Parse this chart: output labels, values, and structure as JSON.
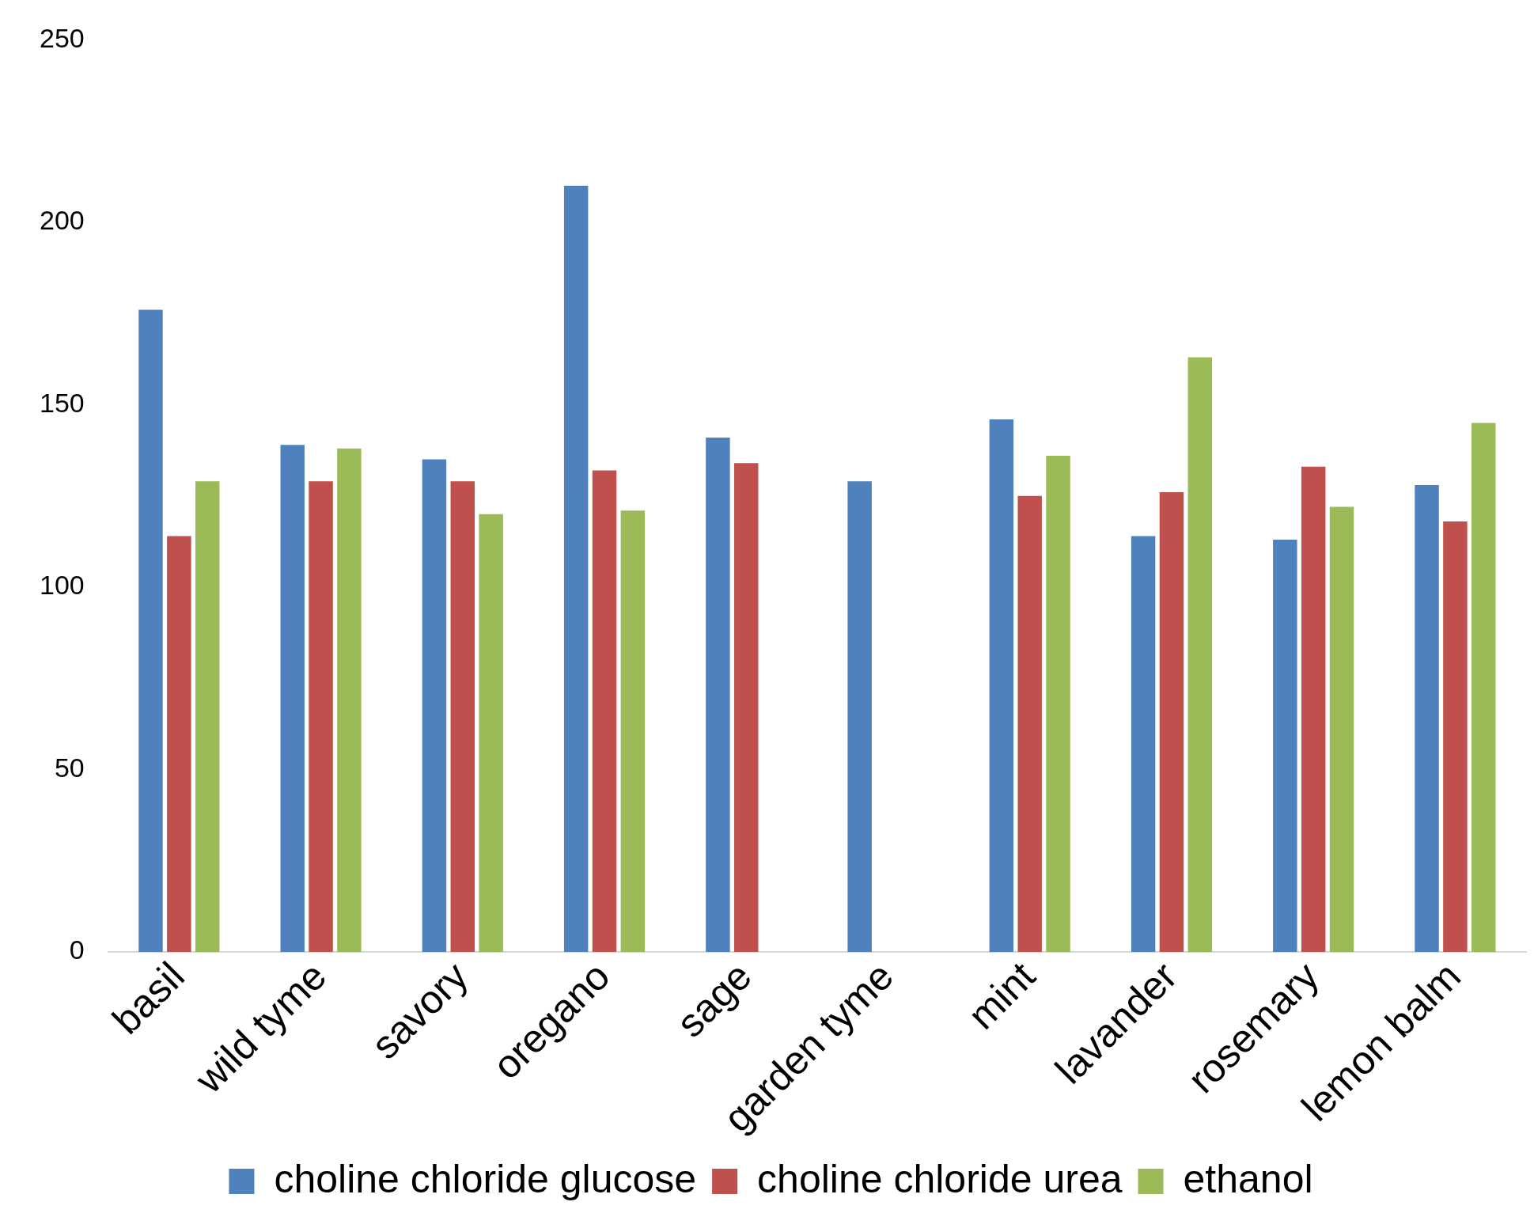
{
  "chart_data": {
    "type": "bar",
    "categories": [
      "basil",
      "wild tyme",
      "savory",
      "oregano",
      "sage",
      "garden tyme",
      "mint",
      "lavander",
      "rosemary",
      "lemon balm"
    ],
    "series": [
      {
        "name": "choline chloride glucose",
        "color": "#4f81bd",
        "values": [
          176,
          139,
          135,
          210,
          141,
          129,
          146,
          114,
          113,
          128
        ]
      },
      {
        "name": "choline chloride urea",
        "color": "#c0504d",
        "values": [
          114,
          129,
          129,
          132,
          134,
          null,
          125,
          126,
          133,
          118
        ]
      },
      {
        "name": "ethanol",
        "color": "#9bbb59",
        "values": [
          129,
          138,
          120,
          121,
          null,
          null,
          136,
          163,
          122,
          145
        ]
      }
    ],
    "ylim": [
      0,
      250
    ],
    "yticks": [
      0,
      50,
      100,
      150,
      200,
      250
    ],
    "grid": false,
    "legend": "bottom"
  }
}
